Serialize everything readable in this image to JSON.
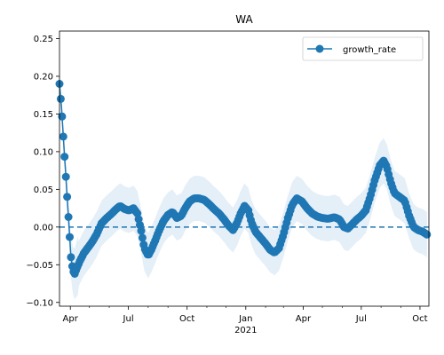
{
  "chart_data": {
    "type": "line",
    "title": "WA",
    "xlabel": "",
    "ylabel": "",
    "x_start": "2020-03-15",
    "x_end": "2021-10-15",
    "x_ticks": [
      {
        "label": "Apr",
        "date": "2020-04-01",
        "major": true
      },
      {
        "label": "Jul",
        "date": "2020-07-01",
        "major": true
      },
      {
        "label": "Oct",
        "date": "2020-10-01",
        "major": true
      },
      {
        "label": "Jan",
        "date": "2021-01-01",
        "major": true
      },
      {
        "label": "Apr",
        "date": "2021-04-01",
        "major": true
      },
      {
        "label": "Jul",
        "date": "2021-07-01",
        "major": true
      },
      {
        "label": "Oct",
        "date": "2021-10-01",
        "major": true
      }
    ],
    "x_minor_ticks": [
      "2020-05-01",
      "2020-06-01",
      "2020-08-01",
      "2020-09-01",
      "2020-11-01",
      "2020-12-01",
      "2021-02-01",
      "2021-03-01",
      "2021-05-01",
      "2021-06-01",
      "2021-08-01",
      "2021-09-01"
    ],
    "x_secondary_label": {
      "text": "2021",
      "date": "2021-01-01"
    },
    "ylim": [
      -0.105,
      0.26
    ],
    "y_ticks": [
      -0.1,
      -0.05,
      0.0,
      0.05,
      0.1,
      0.15,
      0.2,
      0.25
    ],
    "y_tick_labels": [
      "−0.10",
      "−0.05",
      "0.00",
      "0.05",
      "0.10",
      "0.15",
      "0.20",
      "0.25"
    ],
    "reference_line": {
      "y": 0,
      "style": "dashed"
    },
    "legend": {
      "position": "top-right",
      "entries": [
        "growth_rate"
      ]
    },
    "series": [
      {
        "name": "growth_rate",
        "color": "#1f77b4",
        "band_color": "#cfe2f3",
        "points": [
          {
            "x": "2020-03-15",
            "y": 0.19
          },
          {
            "x": "2020-03-18",
            "y": 0.16
          },
          {
            "x": "2020-03-21",
            "y": 0.12
          },
          {
            "x": "2020-03-24",
            "y": 0.08
          },
          {
            "x": "2020-03-27",
            "y": 0.04
          },
          {
            "x": "2020-03-30",
            "y": 0.0
          },
          {
            "x": "2020-04-02",
            "y": -0.04
          },
          {
            "x": "2020-04-05",
            "y": -0.058
          },
          {
            "x": "2020-04-08",
            "y": -0.062
          },
          {
            "x": "2020-04-11",
            "y": -0.055
          },
          {
            "x": "2020-04-16",
            "y": -0.045
          },
          {
            "x": "2020-04-22",
            "y": -0.035
          },
          {
            "x": "2020-04-28",
            "y": -0.028
          },
          {
            "x": "2020-05-05",
            "y": -0.02
          },
          {
            "x": "2020-05-12",
            "y": -0.01
          },
          {
            "x": "2020-05-20",
            "y": 0.005
          },
          {
            "x": "2020-05-28",
            "y": 0.012
          },
          {
            "x": "2020-06-05",
            "y": 0.018
          },
          {
            "x": "2020-06-12",
            "y": 0.024
          },
          {
            "x": "2020-06-18",
            "y": 0.028
          },
          {
            "x": "2020-06-25",
            "y": 0.024
          },
          {
            "x": "2020-07-02",
            "y": 0.022
          },
          {
            "x": "2020-07-09",
            "y": 0.025
          },
          {
            "x": "2020-07-15",
            "y": 0.018
          },
          {
            "x": "2020-07-21",
            "y": -0.005
          },
          {
            "x": "2020-07-26",
            "y": -0.028
          },
          {
            "x": "2020-08-01",
            "y": -0.038
          },
          {
            "x": "2020-08-06",
            "y": -0.03
          },
          {
            "x": "2020-08-12",
            "y": -0.018
          },
          {
            "x": "2020-08-18",
            "y": -0.005
          },
          {
            "x": "2020-08-25",
            "y": 0.008
          },
          {
            "x": "2020-09-01",
            "y": 0.016
          },
          {
            "x": "2020-09-08",
            "y": 0.02
          },
          {
            "x": "2020-09-15",
            "y": 0.012
          },
          {
            "x": "2020-09-22",
            "y": 0.015
          },
          {
            "x": "2020-09-28",
            "y": 0.025
          },
          {
            "x": "2020-10-05",
            "y": 0.034
          },
          {
            "x": "2020-10-12",
            "y": 0.038
          },
          {
            "x": "2020-10-20",
            "y": 0.038
          },
          {
            "x": "2020-10-28",
            "y": 0.036
          },
          {
            "x": "2020-11-05",
            "y": 0.03
          },
          {
            "x": "2020-11-12",
            "y": 0.024
          },
          {
            "x": "2020-11-20",
            "y": 0.018
          },
          {
            "x": "2020-11-28",
            "y": 0.01
          },
          {
            "x": "2020-12-05",
            "y": 0.002
          },
          {
            "x": "2020-12-12",
            "y": -0.004
          },
          {
            "x": "2020-12-18",
            "y": 0.005
          },
          {
            "x": "2020-12-24",
            "y": 0.018
          },
          {
            "x": "2020-12-30",
            "y": 0.028
          },
          {
            "x": "2021-01-05",
            "y": 0.022
          },
          {
            "x": "2021-01-10",
            "y": 0.006
          },
          {
            "x": "2021-01-16",
            "y": -0.006
          },
          {
            "x": "2021-01-24",
            "y": -0.014
          },
          {
            "x": "2021-02-01",
            "y": -0.022
          },
          {
            "x": "2021-02-08",
            "y": -0.03
          },
          {
            "x": "2021-02-15",
            "y": -0.034
          },
          {
            "x": "2021-02-22",
            "y": -0.028
          },
          {
            "x": "2021-03-01",
            "y": -0.01
          },
          {
            "x": "2021-03-08",
            "y": 0.012
          },
          {
            "x": "2021-03-15",
            "y": 0.03
          },
          {
            "x": "2021-03-22",
            "y": 0.038
          },
          {
            "x": "2021-03-30",
            "y": 0.034
          },
          {
            "x": "2021-04-07",
            "y": 0.025
          },
          {
            "x": "2021-04-15",
            "y": 0.018
          },
          {
            "x": "2021-04-23",
            "y": 0.014
          },
          {
            "x": "2021-05-01",
            "y": 0.012
          },
          {
            "x": "2021-05-10",
            "y": 0.011
          },
          {
            "x": "2021-05-20",
            "y": 0.013
          },
          {
            "x": "2021-05-28",
            "y": 0.01
          },
          {
            "x": "2021-06-04",
            "y": 0.0
          },
          {
            "x": "2021-06-10",
            "y": -0.002
          },
          {
            "x": "2021-06-17",
            "y": 0.004
          },
          {
            "x": "2021-06-24",
            "y": 0.01
          },
          {
            "x": "2021-07-01",
            "y": 0.015
          },
          {
            "x": "2021-07-08",
            "y": 0.022
          },
          {
            "x": "2021-07-15",
            "y": 0.04
          },
          {
            "x": "2021-07-22",
            "y": 0.062
          },
          {
            "x": "2021-07-30",
            "y": 0.082
          },
          {
            "x": "2021-08-05",
            "y": 0.088
          },
          {
            "x": "2021-08-10",
            "y": 0.08
          },
          {
            "x": "2021-08-16",
            "y": 0.06
          },
          {
            "x": "2021-08-22",
            "y": 0.045
          },
          {
            "x": "2021-08-30",
            "y": 0.04
          },
          {
            "x": "2021-09-07",
            "y": 0.035
          },
          {
            "x": "2021-09-14",
            "y": 0.015
          },
          {
            "x": "2021-09-21",
            "y": 0.0
          },
          {
            "x": "2021-09-28",
            "y": -0.004
          },
          {
            "x": "2021-10-05",
            "y": -0.006
          },
          {
            "x": "2021-10-12",
            "y": -0.01
          }
        ]
      }
    ]
  }
}
